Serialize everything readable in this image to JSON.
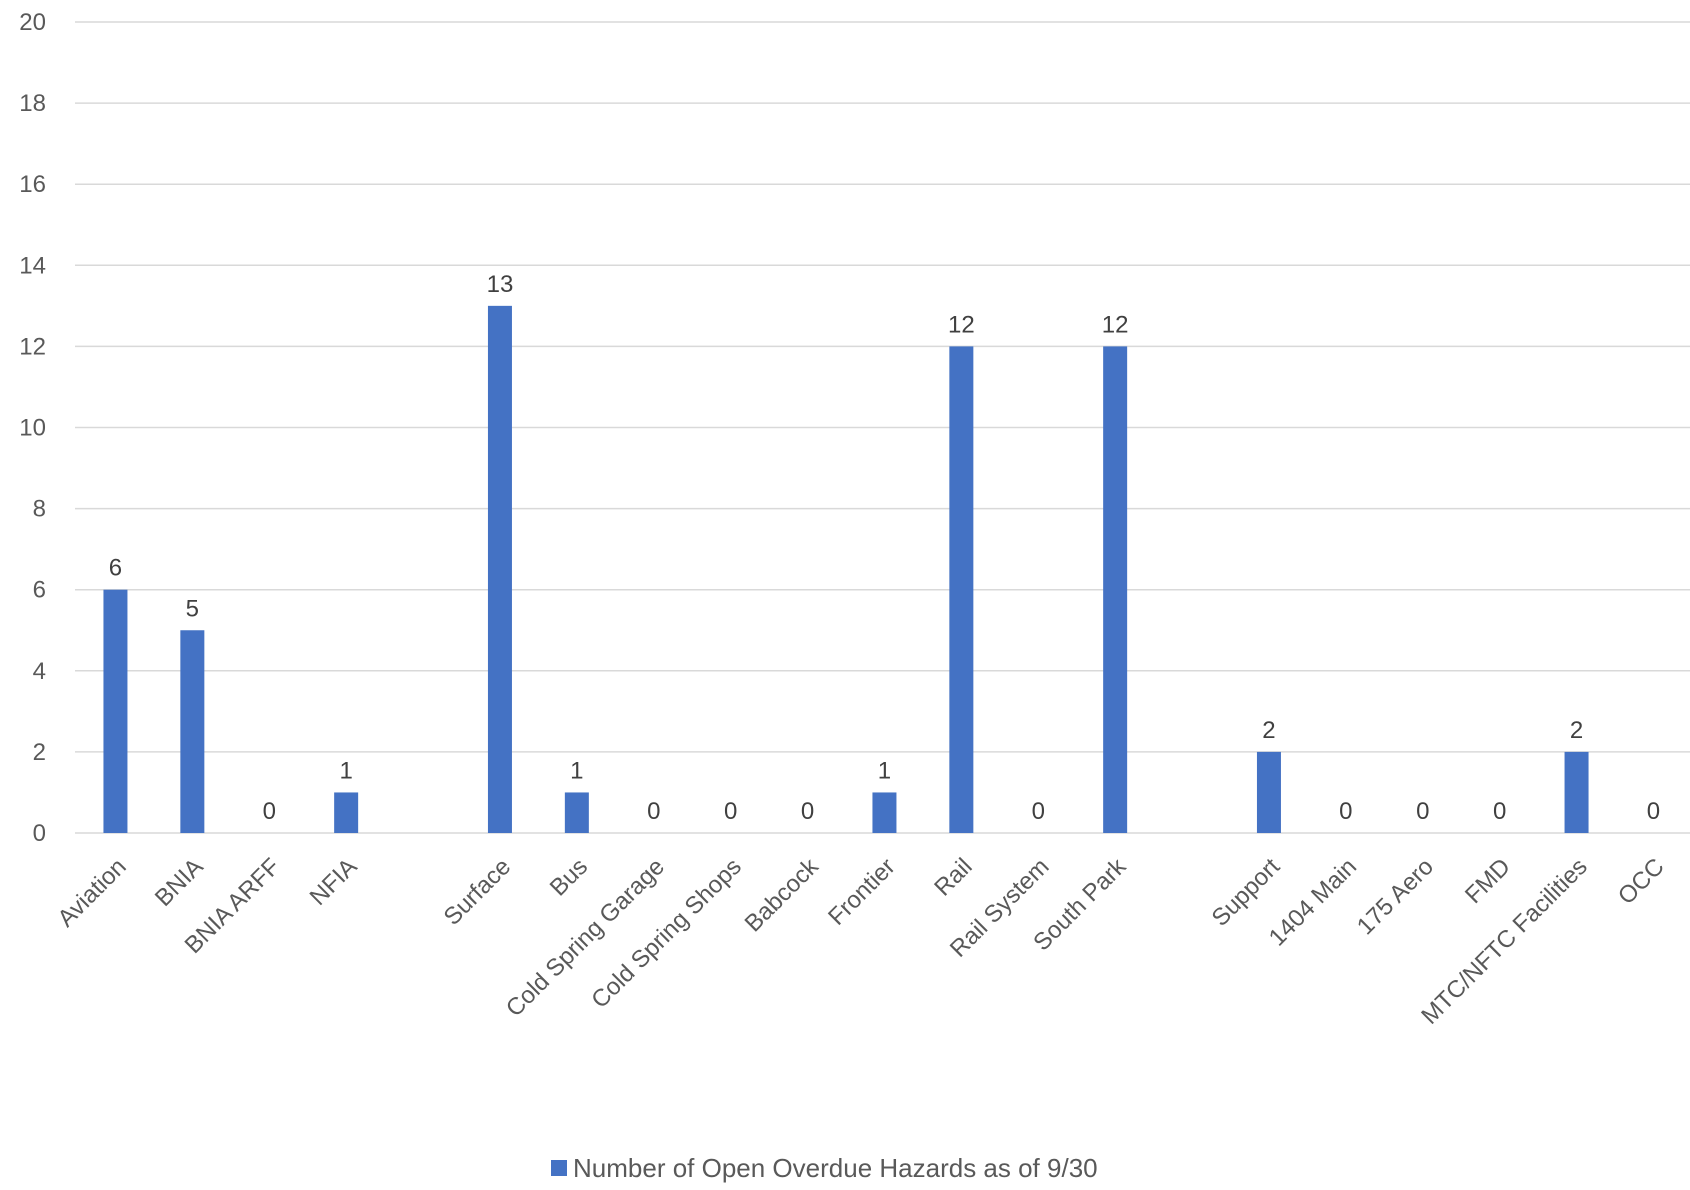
{
  "chart_data": {
    "type": "bar",
    "categories": [
      "Aviation",
      "BNIA",
      "BNIA ARFF",
      "NFIA",
      "",
      "Surface",
      "Bus",
      "Cold Spring Garage",
      "Cold Spring Shops",
      "Babcock",
      "Frontier",
      "Rail",
      "Rail System",
      "South Park",
      "",
      "Support",
      "1404 Main",
      "175 Aero",
      "FMD",
      "MTC/NFTC Facilities",
      "OCC"
    ],
    "series": [
      {
        "name": "Number of Open Overdue Hazards as of 9/30",
        "values": [
          6,
          5,
          0,
          1,
          null,
          13,
          1,
          0,
          0,
          0,
          1,
          12,
          0,
          12,
          null,
          2,
          0,
          0,
          0,
          2,
          0
        ],
        "color": "#4472c4"
      }
    ],
    "ylim": [
      0,
      20
    ],
    "yticks": [
      0,
      2,
      4,
      6,
      8,
      10,
      12,
      14,
      16,
      18,
      20
    ],
    "grid": true,
    "legend": "bottom",
    "title": "",
    "xlabel": "",
    "ylabel": ""
  }
}
